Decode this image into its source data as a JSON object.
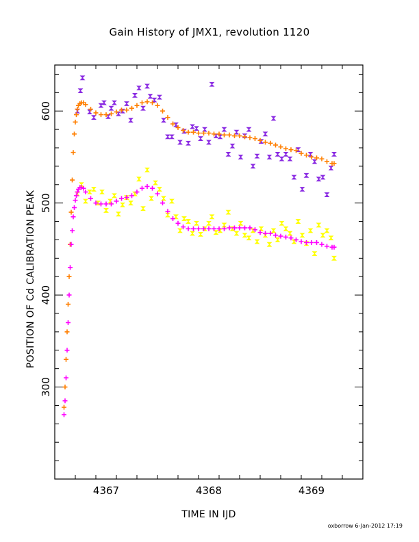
{
  "chart_data": {
    "type": "scatter",
    "title": "Gain History of JMX1, revolution 1120",
    "xlabel": "TIME IN IJD",
    "ylabel": "POSITION OF Cd CALIBRATION PEAK",
    "xlim": [
      4366.5,
      4369.5
    ],
    "ylim": [
      200,
      650
    ],
    "x_ticks": [
      4367,
      4368,
      4369
    ],
    "x_tick_labels": [
      "4367",
      "4368",
      "4369"
    ],
    "y_ticks": [
      300,
      400,
      500,
      600
    ],
    "y_tick_labels": [
      "300",
      "400",
      "500",
      "600"
    ],
    "grid": false,
    "legend": "none",
    "footer": "oxborrow  6-Jan-2012 17:19",
    "series": [
      {
        "marker": "bowtie",
        "color": "#8a2be2",
        "points": [
          [
            4366.72,
            600
          ],
          [
            4366.75,
            622
          ],
          [
            4366.77,
            636
          ],
          [
            4366.84,
            599
          ],
          [
            4366.88,
            593
          ],
          [
            4366.95,
            606
          ],
          [
            4366.98,
            609
          ],
          [
            4367.02,
            594
          ],
          [
            4367.05,
            603
          ],
          [
            4367.08,
            609
          ],
          [
            4367.12,
            597
          ],
          [
            4367.16,
            600
          ],
          [
            4367.2,
            608
          ],
          [
            4367.24,
            590
          ],
          [
            4367.28,
            617
          ],
          [
            4367.32,
            625
          ],
          [
            4367.36,
            603
          ],
          [
            4367.4,
            627
          ],
          [
            4367.43,
            616
          ],
          [
            4367.47,
            612
          ],
          [
            4367.52,
            615
          ],
          [
            4367.56,
            590
          ],
          [
            4367.6,
            572
          ],
          [
            4367.64,
            572
          ],
          [
            4367.68,
            585
          ],
          [
            4367.72,
            566
          ],
          [
            4367.76,
            578
          ],
          [
            4367.8,
            565
          ],
          [
            4367.84,
            583
          ],
          [
            4367.88,
            581
          ],
          [
            4367.92,
            570
          ],
          [
            4367.96,
            580
          ],
          [
            4368.0,
            566
          ],
          [
            4368.03,
            629
          ],
          [
            4368.07,
            573
          ],
          [
            4368.11,
            572
          ],
          [
            4368.15,
            580
          ],
          [
            4368.19,
            553
          ],
          [
            4368.23,
            562
          ],
          [
            4368.27,
            577
          ],
          [
            4368.31,
            550
          ],
          [
            4368.35,
            573
          ],
          [
            4368.39,
            580
          ],
          [
            4368.43,
            540
          ],
          [
            4368.47,
            551
          ],
          [
            4368.51,
            567
          ],
          [
            4368.55,
            575
          ],
          [
            4368.59,
            550
          ],
          [
            4368.63,
            592
          ],
          [
            4368.67,
            553
          ],
          [
            4368.71,
            548
          ],
          [
            4368.75,
            553
          ],
          [
            4368.79,
            548
          ],
          [
            4368.83,
            528
          ],
          [
            4368.87,
            558
          ],
          [
            4368.91,
            515
          ],
          [
            4368.95,
            530
          ],
          [
            4368.99,
            553
          ],
          [
            4369.03,
            545
          ],
          [
            4369.07,
            526
          ],
          [
            4369.11,
            528
          ],
          [
            4369.15,
            509
          ],
          [
            4369.19,
            538
          ],
          [
            4369.22,
            553
          ]
        ]
      },
      {
        "marker": "bowtie",
        "color": "#ffff00",
        "points": [
          [
            4366.72,
            510
          ],
          [
            4366.76,
            520
          ],
          [
            4366.8,
            502
          ],
          [
            4366.84,
            512
          ],
          [
            4366.88,
            515
          ],
          [
            4366.92,
            500
          ],
          [
            4366.96,
            512
          ],
          [
            4367.0,
            492
          ],
          [
            4367.04,
            502
          ],
          [
            4367.08,
            508
          ],
          [
            4367.12,
            488
          ],
          [
            4367.16,
            498
          ],
          [
            4367.2,
            506
          ],
          [
            4367.24,
            500
          ],
          [
            4367.28,
            510
          ],
          [
            4367.32,
            526
          ],
          [
            4367.36,
            494
          ],
          [
            4367.4,
            536
          ],
          [
            4367.44,
            505
          ],
          [
            4367.48,
            522
          ],
          [
            4367.52,
            515
          ],
          [
            4367.56,
            505
          ],
          [
            4367.6,
            487
          ],
          [
            4367.64,
            502
          ],
          [
            4367.68,
            485
          ],
          [
            4367.72,
            470
          ],
          [
            4367.76,
            483
          ],
          [
            4367.8,
            480
          ],
          [
            4367.84,
            467
          ],
          [
            4367.88,
            478
          ],
          [
            4367.92,
            466
          ],
          [
            4367.96,
            472
          ],
          [
            4368.0,
            478
          ],
          [
            4368.03,
            485
          ],
          [
            4368.07,
            468
          ],
          [
            4368.11,
            470
          ],
          [
            4368.15,
            476
          ],
          [
            4368.19,
            490
          ],
          [
            4368.23,
            472
          ],
          [
            4368.27,
            467
          ],
          [
            4368.31,
            478
          ],
          [
            4368.35,
            465
          ],
          [
            4368.39,
            462
          ],
          [
            4368.43,
            470
          ],
          [
            4368.47,
            458
          ],
          [
            4368.51,
            472
          ],
          [
            4368.55,
            465
          ],
          [
            4368.59,
            455
          ],
          [
            4368.63,
            470
          ],
          [
            4368.67,
            460
          ],
          [
            4368.71,
            478
          ],
          [
            4368.75,
            472
          ],
          [
            4368.79,
            467
          ],
          [
            4368.83,
            458
          ],
          [
            4368.87,
            480
          ],
          [
            4368.91,
            465
          ],
          [
            4368.95,
            456
          ],
          [
            4368.99,
            470
          ],
          [
            4369.03,
            445
          ],
          [
            4369.07,
            476
          ],
          [
            4369.11,
            465
          ],
          [
            4369.15,
            470
          ],
          [
            4369.19,
            462
          ],
          [
            4369.22,
            440
          ]
        ]
      },
      {
        "marker": "plus",
        "color": "#ff7f00",
        "points": [
          [
            4366.59,
            278
          ],
          [
            4366.6,
            300
          ],
          [
            4366.61,
            330
          ],
          [
            4366.62,
            360
          ],
          [
            4366.63,
            390
          ],
          [
            4366.64,
            420
          ],
          [
            4366.65,
            455
          ],
          [
            4366.66,
            490
          ],
          [
            4366.67,
            525
          ],
          [
            4366.68,
            555
          ],
          [
            4366.69,
            575
          ],
          [
            4366.7,
            588
          ],
          [
            4366.71,
            596
          ],
          [
            4366.72,
            602
          ],
          [
            4366.73,
            606
          ],
          [
            4366.745,
            608
          ],
          [
            4366.76,
            609
          ],
          [
            4366.78,
            609
          ],
          [
            4366.8,
            607
          ],
          [
            4366.85,
            602
          ],
          [
            4366.9,
            598
          ],
          [
            4366.95,
            596
          ],
          [
            4367.0,
            596
          ],
          [
            4367.05,
            597
          ],
          [
            4367.1,
            599
          ],
          [
            4367.15,
            601
          ],
          [
            4367.2,
            601
          ],
          [
            4367.25,
            603
          ],
          [
            4367.3,
            606
          ],
          [
            4367.35,
            609
          ],
          [
            4367.4,
            610
          ],
          [
            4367.45,
            609
          ],
          [
            4367.5,
            606
          ],
          [
            4367.55,
            600
          ],
          [
            4367.6,
            593
          ],
          [
            4367.65,
            586
          ],
          [
            4367.7,
            582
          ],
          [
            4367.75,
            579
          ],
          [
            4367.8,
            577
          ],
          [
            4367.85,
            577
          ],
          [
            4367.9,
            576
          ],
          [
            4367.95,
            576
          ],
          [
            4368.0,
            576
          ],
          [
            4368.05,
            575
          ],
          [
            4368.1,
            575
          ],
          [
            4368.15,
            574
          ],
          [
            4368.2,
            574
          ],
          [
            4368.25,
            573
          ],
          [
            4368.3,
            573
          ],
          [
            4368.35,
            572
          ],
          [
            4368.4,
            571
          ],
          [
            4368.45,
            570
          ],
          [
            4368.5,
            568
          ],
          [
            4368.55,
            566
          ],
          [
            4368.6,
            565
          ],
          [
            4368.65,
            563
          ],
          [
            4368.7,
            561
          ],
          [
            4368.75,
            559
          ],
          [
            4368.8,
            558
          ],
          [
            4368.85,
            557
          ],
          [
            4368.9,
            554
          ],
          [
            4368.95,
            552
          ],
          [
            4369.0,
            550
          ],
          [
            4369.05,
            549
          ],
          [
            4369.1,
            548
          ],
          [
            4369.15,
            545
          ],
          [
            4369.2,
            543
          ],
          [
            4369.22,
            543
          ]
        ]
      },
      {
        "marker": "plus",
        "color": "#ff00ff",
        "points": [
          [
            4366.59,
            270
          ],
          [
            4366.6,
            285
          ],
          [
            4366.61,
            310
          ],
          [
            4366.62,
            340
          ],
          [
            4366.63,
            370
          ],
          [
            4366.64,
            400
          ],
          [
            4366.65,
            430
          ],
          [
            4366.66,
            455
          ],
          [
            4366.67,
            470
          ],
          [
            4366.68,
            485
          ],
          [
            4366.69,
            495
          ],
          [
            4366.7,
            503
          ],
          [
            4366.71,
            508
          ],
          [
            4366.72,
            512
          ],
          [
            4366.73,
            515
          ],
          [
            4366.745,
            517
          ],
          [
            4366.76,
            517
          ],
          [
            4366.78,
            516
          ],
          [
            4366.8,
            512
          ],
          [
            4366.85,
            505
          ],
          [
            4366.9,
            500
          ],
          [
            4366.95,
            499
          ],
          [
            4367.0,
            499
          ],
          [
            4367.05,
            499
          ],
          [
            4367.1,
            502
          ],
          [
            4367.15,
            505
          ],
          [
            4367.2,
            506
          ],
          [
            4367.25,
            508
          ],
          [
            4367.3,
            512
          ],
          [
            4367.35,
            516
          ],
          [
            4367.4,
            518
          ],
          [
            4367.45,
            516
          ],
          [
            4367.5,
            510
          ],
          [
            4367.55,
            500
          ],
          [
            4367.6,
            491
          ],
          [
            4367.65,
            483
          ],
          [
            4367.7,
            478
          ],
          [
            4367.75,
            474
          ],
          [
            4367.8,
            472
          ],
          [
            4367.85,
            472
          ],
          [
            4367.9,
            472
          ],
          [
            4367.95,
            472
          ],
          [
            4368.0,
            472
          ],
          [
            4368.05,
            472
          ],
          [
            4368.1,
            472
          ],
          [
            4368.15,
            472
          ],
          [
            4368.2,
            473
          ],
          [
            4368.25,
            473
          ],
          [
            4368.3,
            473
          ],
          [
            4368.35,
            473
          ],
          [
            4368.4,
            473
          ],
          [
            4368.45,
            471
          ],
          [
            4368.5,
            468
          ],
          [
            4368.55,
            467
          ],
          [
            4368.6,
            467
          ],
          [
            4368.65,
            465
          ],
          [
            4368.7,
            464
          ],
          [
            4368.75,
            463
          ],
          [
            4368.8,
            462
          ],
          [
            4368.85,
            460
          ],
          [
            4368.9,
            458
          ],
          [
            4368.95,
            457
          ],
          [
            4369.0,
            457
          ],
          [
            4369.05,
            457
          ],
          [
            4369.1,
            455
          ],
          [
            4369.15,
            453
          ],
          [
            4369.2,
            452
          ],
          [
            4369.22,
            452
          ]
        ]
      }
    ]
  }
}
